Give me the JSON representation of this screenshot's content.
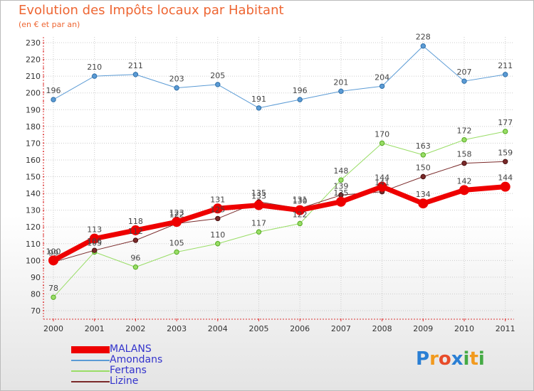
{
  "header": {
    "title": "Evolution des Impôts locaux par Habitant",
    "subtitle": "(en € et par an)"
  },
  "logo": {
    "letters": [
      "P",
      "r",
      "o",
      "x",
      "i",
      "t",
      "i"
    ],
    "colors": [
      "#2a7fd4",
      "#f29a1e",
      "#e84c2a",
      "#2a7fd4",
      "#44aa44",
      "#f29a1e",
      "#44aa44"
    ]
  },
  "chart_data": {
    "type": "line",
    "title": "Evolution des Impôts locaux par Habitant",
    "subtitle": "(en € et par an)",
    "xlabel": "",
    "ylabel": "",
    "categories": [
      "2000",
      "2001",
      "2002",
      "2003",
      "2004",
      "2005",
      "2006",
      "2007",
      "2008",
      "2009",
      "2010",
      "2011"
    ],
    "ylim": [
      70,
      230
    ],
    "yticks": [
      70,
      80,
      90,
      100,
      110,
      120,
      130,
      140,
      150,
      160,
      170,
      180,
      190,
      200,
      210,
      220,
      230
    ],
    "grid": true,
    "legend_position": "bottom-left",
    "series": [
      {
        "name": "Amondans",
        "color": "#5b9bd5",
        "width": 1,
        "values": [
          196,
          210,
          211,
          203,
          205,
          191,
          196,
          201,
          204,
          228,
          207,
          211
        ]
      },
      {
        "name": "Fertans",
        "color": "#99dd66",
        "width": 1,
        "values": [
          78,
          105,
          96,
          105,
          110,
          117,
          122,
          148,
          170,
          163,
          172,
          177
        ]
      },
      {
        "name": "Lizine",
        "color": "#7a2a2a",
        "width": 1,
        "values": [
          99,
          106,
          112,
          122,
          125,
          135,
          131,
          139,
          141,
          150,
          158,
          159
        ]
      },
      {
        "name": "MALANS",
        "color": "#ee0000",
        "width": 7,
        "values": [
          100,
          113,
          118,
          123,
          131,
          133,
          130,
          135,
          144,
          134,
          142,
          144
        ]
      }
    ],
    "legend_order": [
      "MALANS",
      "Amondans",
      "Fertans",
      "Lizine"
    ]
  }
}
